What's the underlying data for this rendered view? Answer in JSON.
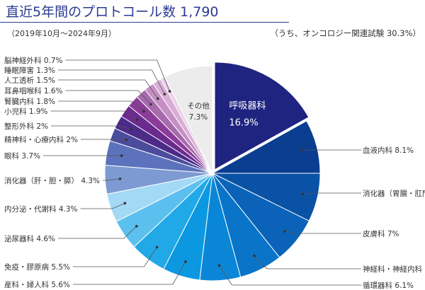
{
  "header": {
    "title": "直近5年間のプロトコール数 1,790",
    "period": "（2019年10月～2024年9月）",
    "oncology_note": "（うち、オンコロジー関連試験 30.3%）"
  },
  "chart_data": {
    "type": "pie",
    "title": "直近5年間のプロトコール数 1,790",
    "unit": "%",
    "slices": [
      {
        "label": "呼吸器科",
        "value": 16.9,
        "color": "#1f2480"
      },
      {
        "label": "血液内科",
        "value": 8.1,
        "color": "#0b3d91"
      },
      {
        "label": "消化器（胃腸・肛門）",
        "value": 7.3,
        "color": "#0a52a6"
      },
      {
        "label": "皮膚科",
        "value": 7.0,
        "color": "#0a63b8"
      },
      {
        "label": "神経科・神経内科",
        "value": 6.5,
        "color": "#0a74c8"
      },
      {
        "label": "循環器科",
        "value": 6.1,
        "color": "#0a86d6"
      },
      {
        "label": "産科・婦人科",
        "value": 5.6,
        "color": "#0b98e0"
      },
      {
        "label": "免疫・膠原病",
        "value": 5.5,
        "color": "#20a9e6"
      },
      {
        "label": "泌尿器科",
        "value": 4.6,
        "color": "#5cc0ee"
      },
      {
        "label": "内分泌・代謝科",
        "value": 4.3,
        "color": "#a3d9f5"
      },
      {
        "label": "消化器（肝・胆・膵）",
        "value": 4.3,
        "color": "#7d9bd2"
      },
      {
        "label": "眼科",
        "value": 3.7,
        "color": "#5c72bd"
      },
      {
        "label": "精神科・心療内科",
        "value": 2.0,
        "color": "#4b4c9c"
      },
      {
        "label": "整形外科",
        "value": 2.0,
        "color": "#4b2a88"
      },
      {
        "label": "小児科",
        "value": 1.9,
        "color": "#6a2a8e"
      },
      {
        "label": "腎臓内科",
        "value": 1.8,
        "color": "#8a3c98"
      },
      {
        "label": "耳鼻咽喉科",
        "value": 1.6,
        "color": "#a66aad"
      },
      {
        "label": "人工透析",
        "value": 1.5,
        "color": "#c58fc3"
      },
      {
        "label": "睡眠障害",
        "value": 1.3,
        "color": "#d8aed6"
      },
      {
        "label": "脳神経外科",
        "value": 0.7,
        "color": "#e9cfe6"
      },
      {
        "label": "その他",
        "value": 7.3,
        "color": "#ececec"
      }
    ]
  }
}
